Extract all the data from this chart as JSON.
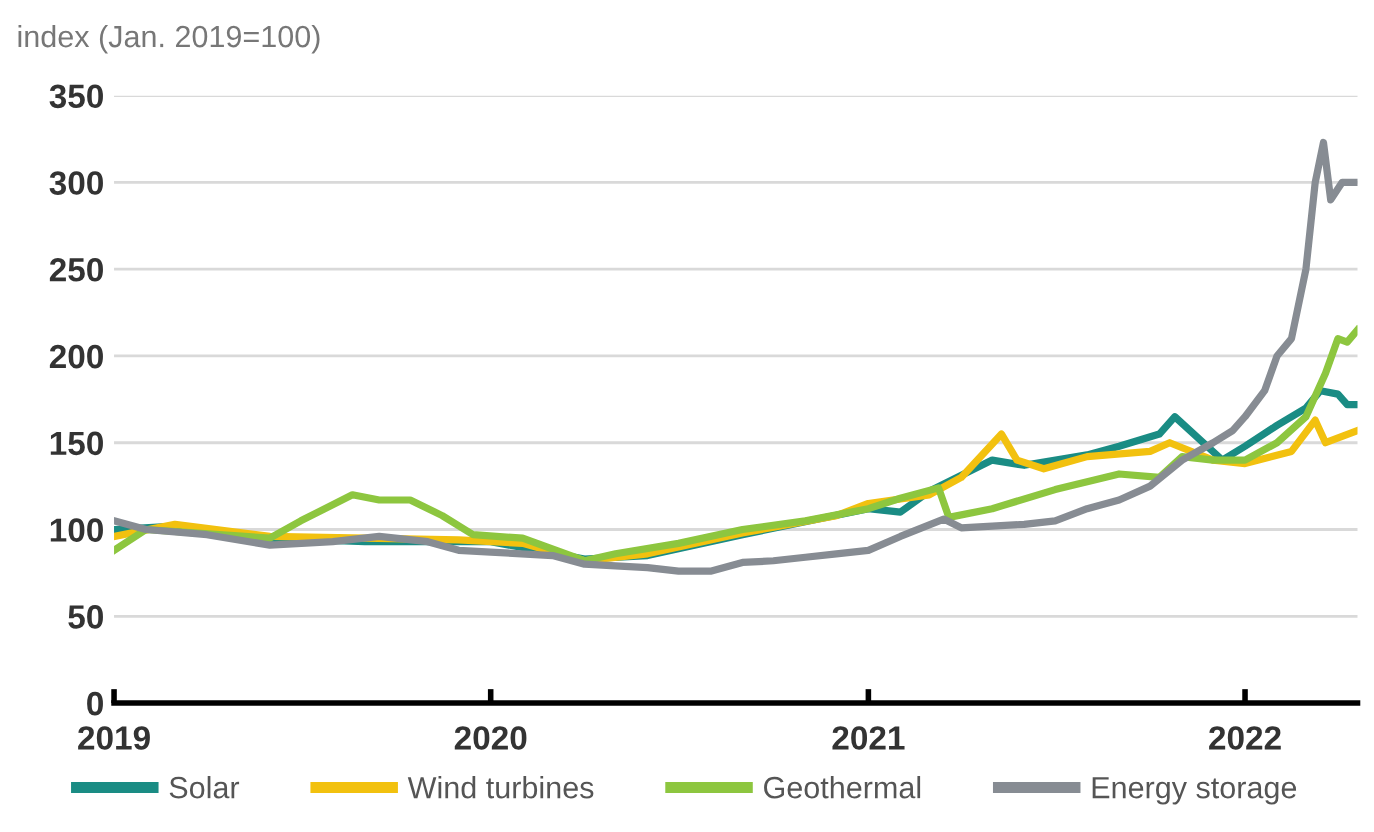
{
  "chart_data": {
    "type": "line",
    "ylabel": "index (Jan. 2019=100)",
    "xlim": [
      "2019-01-01",
      "2022-04-20"
    ],
    "xticks": [
      {
        "value": "2019-01-01",
        "label": "2019"
      },
      {
        "value": "2020-01-01",
        "label": "2020"
      },
      {
        "value": "2021-01-01",
        "label": "2021"
      },
      {
        "value": "2022-01-01",
        "label": "2022"
      }
    ],
    "ylim": [
      0,
      350
    ],
    "yticks": [
      0,
      50,
      100,
      150,
      200,
      250,
      300,
      350
    ],
    "grid": "y",
    "legend": "bottom",
    "line_style": "solid",
    "marker": "none",
    "series": [
      {
        "name": "Solar",
        "color": "#1a8c84",
        "x": [
          "2019-01-01",
          "2019-03-01",
          "2019-06-01",
          "2019-09-01",
          "2020-01-01",
          "2020-04-01",
          "2020-06-01",
          "2020-09-01",
          "2021-01-01",
          "2021-02-01",
          "2021-03-01",
          "2021-05-01",
          "2021-06-01",
          "2021-08-01",
          "2021-09-01",
          "2021-10-10",
          "2021-10-25",
          "2021-12-10",
          "2022-01-01",
          "2022-02-01",
          "2022-03-01",
          "2022-03-15",
          "2022-04-01",
          "2022-04-10",
          "2022-04-20"
        ],
        "values": [
          100,
          102,
          95,
          93,
          93,
          83,
          85,
          97,
          112,
          110,
          122,
          140,
          137,
          143,
          148,
          155,
          165,
          140,
          148,
          160,
          170,
          180,
          178,
          172,
          172
        ]
      },
      {
        "name": "Wind turbines",
        "color": "#f2c10f",
        "x": [
          "2019-01-01",
          "2019-03-01",
          "2019-06-01",
          "2019-09-01",
          "2019-12-01",
          "2020-02-01",
          "2020-04-01",
          "2020-06-01",
          "2020-09-01",
          "2020-12-01",
          "2021-01-01",
          "2021-03-01",
          "2021-04-01",
          "2021-05-10",
          "2021-05-25",
          "2021-06-20",
          "2021-08-01",
          "2021-10-01",
          "2021-10-20",
          "2021-12-01",
          "2022-01-01",
          "2022-02-15",
          "2022-03-10",
          "2022-03-20",
          "2022-04-20"
        ],
        "values": [
          96,
          103,
          96,
          95,
          94,
          92,
          82,
          86,
          98,
          108,
          115,
          120,
          130,
          155,
          140,
          135,
          142,
          145,
          150,
          140,
          138,
          145,
          163,
          150,
          157
        ]
      },
      {
        "name": "Geothermal",
        "color": "#8dc63f",
        "x": [
          "2019-01-01",
          "2019-02-01",
          "2019-06-01",
          "2019-07-01",
          "2019-08-20",
          "2019-09-15",
          "2019-10-15",
          "2019-11-15",
          "2019-12-15",
          "2020-02-01",
          "2020-04-01",
          "2020-05-01",
          "2020-07-01",
          "2020-09-01",
          "2020-11-01",
          "2021-01-01",
          "2021-02-01",
          "2021-03-10",
          "2021-03-20",
          "2021-05-01",
          "2021-07-01",
          "2021-09-01",
          "2021-10-10",
          "2021-11-01",
          "2021-12-01",
          "2022-01-01",
          "2022-02-01",
          "2022-03-01",
          "2022-03-20",
          "2022-04-01",
          "2022-04-10",
          "2022-04-20"
        ],
        "values": [
          88,
          100,
          95,
          105,
          120,
          117,
          117,
          108,
          97,
          95,
          82,
          86,
          92,
          100,
          105,
          112,
          118,
          124,
          107,
          112,
          123,
          132,
          130,
          142,
          140,
          140,
          150,
          165,
          190,
          210,
          208,
          215
        ]
      },
      {
        "name": "Energy storage",
        "color": "#878c93",
        "x": [
          "2019-01-01",
          "2019-02-01",
          "2019-04-01",
          "2019-06-01",
          "2019-08-01",
          "2019-09-15",
          "2019-11-01",
          "2019-12-01",
          "2020-01-01",
          "2020-03-01",
          "2020-04-01",
          "2020-05-01",
          "2020-06-01",
          "2020-07-01",
          "2020-08-01",
          "2020-09-01",
          "2020-10-01",
          "2020-11-01",
          "2020-12-01",
          "2021-01-01",
          "2021-02-01",
          "2021-03-15",
          "2021-04-01",
          "2021-05-01",
          "2021-06-01",
          "2021-07-01",
          "2021-08-01",
          "2021-09-01",
          "2021-10-01",
          "2021-11-01",
          "2021-12-01",
          "2021-12-20",
          "2022-01-01",
          "2022-01-20",
          "2022-02-01",
          "2022-02-15",
          "2022-03-01",
          "2022-03-10",
          "2022-03-18",
          "2022-03-25",
          "2022-04-05",
          "2022-04-20"
        ],
        "values": [
          105,
          100,
          97,
          91,
          93,
          96,
          93,
          88,
          87,
          85,
          80,
          79,
          78,
          76,
          76,
          81,
          82,
          84,
          86,
          88,
          96,
          106,
          101,
          102,
          103,
          105,
          112,
          117,
          125,
          140,
          150,
          157,
          165,
          180,
          200,
          210,
          250,
          300,
          323,
          290,
          300,
          300
        ]
      }
    ]
  }
}
